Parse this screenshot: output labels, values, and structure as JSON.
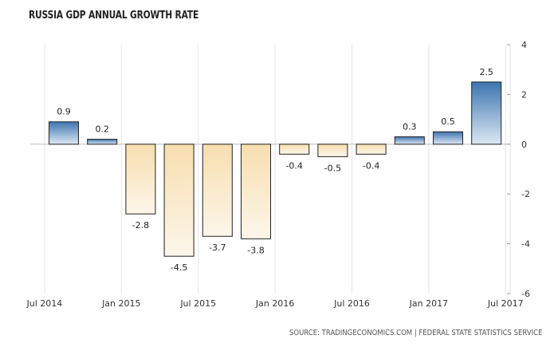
{
  "chart_data": {
    "type": "bar",
    "title": "RUSSIA GDP ANNUAL GROWTH RATE",
    "categories": [
      "Q3 2014",
      "Q4 2014",
      "Q1 2015",
      "Q2 2015",
      "Q3 2015",
      "Q4 2015",
      "Q1 2016",
      "Q2 2016",
      "Q3 2016",
      "Q4 2016",
      "Q1 2017",
      "Q2 2017"
    ],
    "values": [
      0.9,
      0.2,
      -2.8,
      -4.5,
      -3.7,
      -3.8,
      -0.4,
      -0.5,
      -0.4,
      0.3,
      0.5,
      2.5
    ],
    "data_labels": [
      "0.9",
      "0.2",
      "-2.8",
      "-4.5",
      "-3.7",
      "-3.8",
      "-0.4",
      "-0.5",
      "-0.4",
      "0.3",
      "0.5",
      "2.5"
    ],
    "x_tick_labels": [
      "Jul 2014",
      "Jan 2015",
      "Jul 2015",
      "Jan 2016",
      "Jul 2016",
      "Jan 2017",
      "Jul 2017"
    ],
    "y_ticks": [
      4,
      2,
      0,
      -2,
      -4,
      -6
    ],
    "ylim": [
      -6,
      4
    ],
    "grid": true,
    "y_axis_side": "right",
    "positive_color": "#4a7fb8",
    "negative_color": "#f5dcae",
    "source": "SOURCE: TRADINGECONOMICS.COM | FEDERAL STATE STATISTICS SERVICE"
  }
}
